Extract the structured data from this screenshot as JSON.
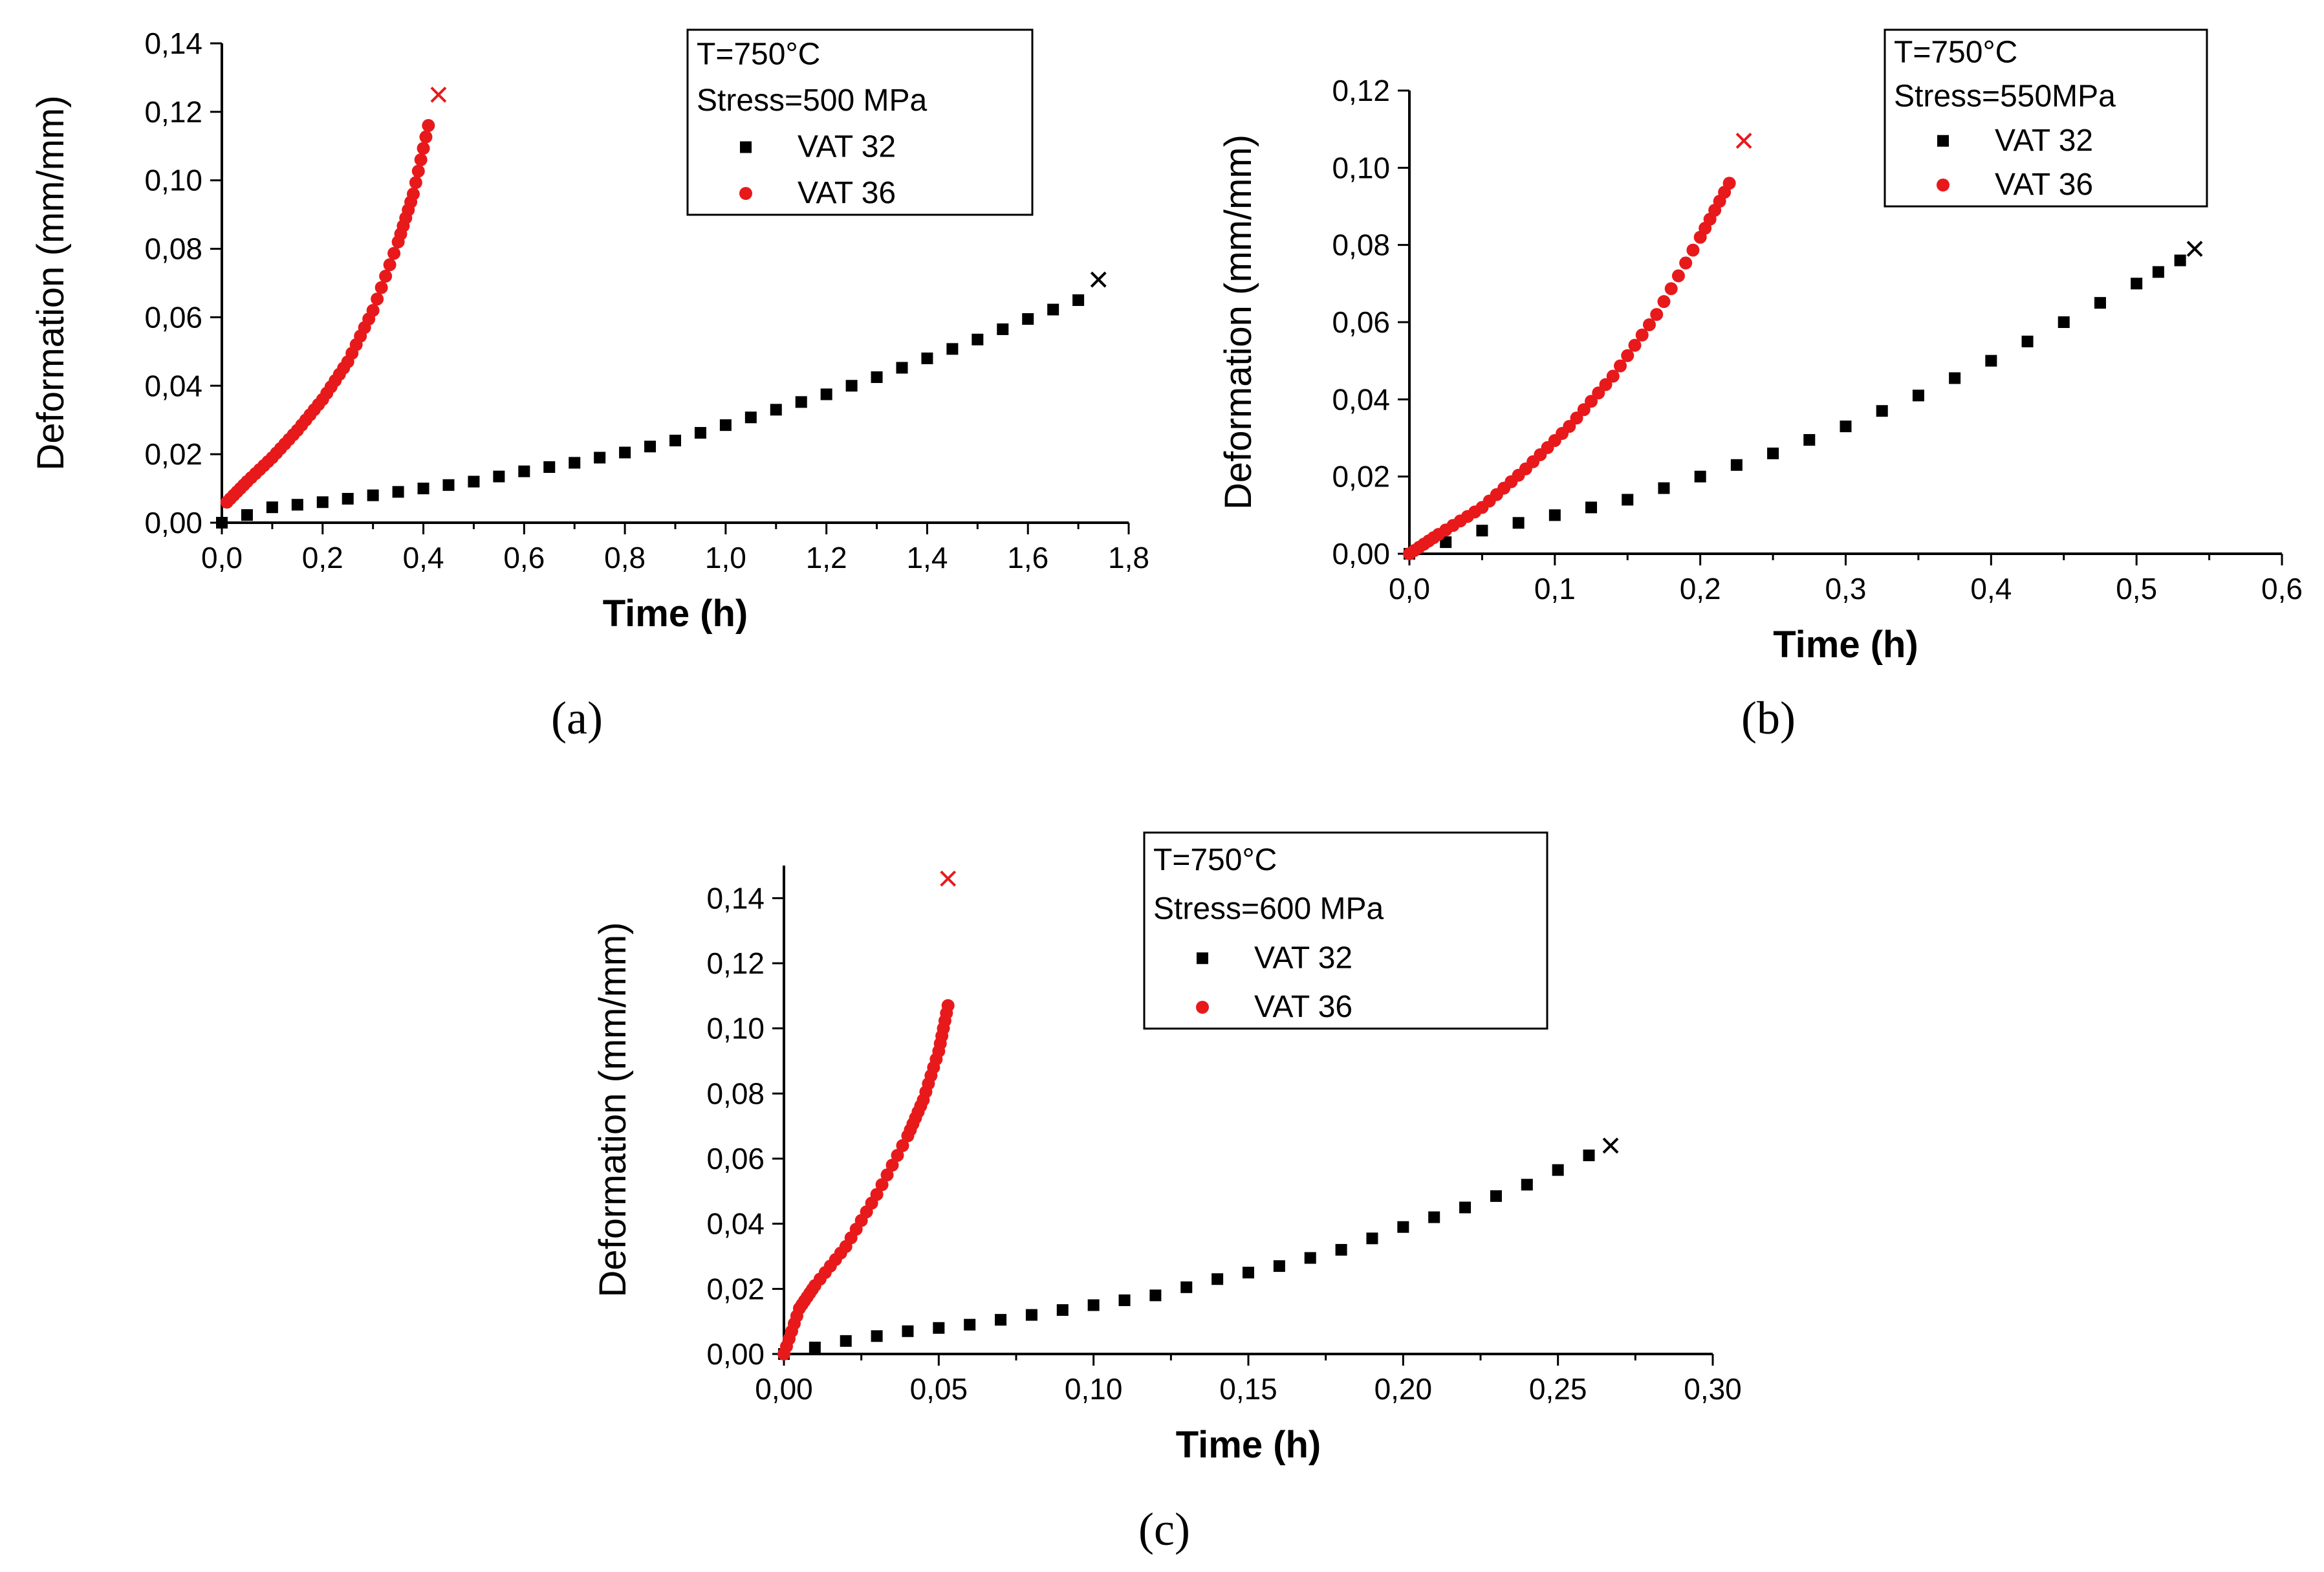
{
  "colors": {
    "vat32": "#000000",
    "vat36": "#e8191b",
    "axis": "#000000"
  },
  "chart_data": [
    {
      "type": "scatter",
      "panel_label": "(a)",
      "xlabel": "Time (h)",
      "ylabel": "Deformation (mm/mm)",
      "xlim": [
        0,
        1.8
      ],
      "ylim": [
        0,
        0.14
      ],
      "x_ticks": [
        "0,0",
        "0,2",
        "0,4",
        "0,6",
        "0,8",
        "1,0",
        "1,2",
        "1,4",
        "1,6",
        "1,8"
      ],
      "y_ticks": [
        "0,00",
        "0,02",
        "0,04",
        "0,06",
        "0,08",
        "0,10",
        "0,12",
        "0,14"
      ],
      "legend": {
        "lines": [
          "T=750°C",
          "Stress=500 MPa"
        ],
        "placement": "top-right"
      },
      "series": [
        {
          "name": "VAT 32",
          "marker": "square",
          "color": "#000000",
          "x": [
            0.0,
            0.1,
            0.2,
            0.3,
            0.4,
            0.5,
            0.6,
            0.7,
            0.8,
            0.9,
            1.0,
            1.1,
            1.2,
            1.3,
            1.4,
            1.5,
            1.6,
            1.7
          ],
          "y": [
            0.0,
            0.0045,
            0.006,
            0.008,
            0.01,
            0.012,
            0.015,
            0.0175,
            0.0205,
            0.024,
            0.0285,
            0.033,
            0.0375,
            0.0425,
            0.048,
            0.0535,
            0.0595,
            0.065
          ],
          "rupture": [
            1.74,
            0.071
          ]
        },
        {
          "name": "VAT 36",
          "marker": "circle",
          "color": "#e8191b",
          "x": [
            0.01,
            0.05,
            0.1,
            0.15,
            0.2,
            0.25,
            0.3,
            0.35,
            0.38,
            0.41
          ],
          "y": [
            0.006,
            0.012,
            0.019,
            0.027,
            0.036,
            0.047,
            0.062,
            0.082,
            0.096,
            0.116
          ],
          "rupture": [
            0.43,
            0.125
          ]
        }
      ]
    },
    {
      "type": "scatter",
      "panel_label": "(b)",
      "xlabel": "Time (h)",
      "ylabel": "Deformation (mm/mm)",
      "xlim": [
        0,
        0.6
      ],
      "ylim": [
        0,
        0.12
      ],
      "x_ticks": [
        "0,0",
        "0,1",
        "0,2",
        "0,3",
        "0,4",
        "0,5",
        "0,6"
      ],
      "y_ticks": [
        "0,00",
        "0,02",
        "0,04",
        "0,06",
        "0,08",
        "0,10",
        "0,12"
      ],
      "legend": {
        "lines": [
          "T=750°C",
          "Stress=550MPa"
        ],
        "placement": "top-right"
      },
      "series": [
        {
          "name": "VAT 32",
          "marker": "square",
          "color": "#000000",
          "x": [
            0.0,
            0.05,
            0.1,
            0.15,
            0.2,
            0.25,
            0.3,
            0.35,
            0.4,
            0.45,
            0.5,
            0.53
          ],
          "y": [
            0.0,
            0.006,
            0.01,
            0.014,
            0.02,
            0.026,
            0.033,
            0.041,
            0.05,
            0.06,
            0.07,
            0.076
          ],
          "rupture": [
            0.54,
            0.079
          ]
        },
        {
          "name": "VAT 36",
          "marker": "circle",
          "color": "#e8191b",
          "x": [
            0.0,
            0.02,
            0.05,
            0.08,
            0.11,
            0.14,
            0.17,
            0.2,
            0.22
          ],
          "y": [
            0.0,
            0.005,
            0.012,
            0.022,
            0.033,
            0.046,
            0.062,
            0.082,
            0.096
          ],
          "rupture": [
            0.23,
            0.107
          ]
        }
      ]
    },
    {
      "type": "scatter",
      "panel_label": "(c)",
      "xlabel": "Time (h)",
      "ylabel": "Deformation (mm/mm)",
      "xlim": [
        0,
        0.3
      ],
      "ylim": [
        0,
        0.15
      ],
      "x_ticks": [
        "0,00",
        "0,05",
        "0,10",
        "0,15",
        "0,20",
        "0,25",
        "0,30"
      ],
      "y_ticks": [
        "0,00",
        "0,02",
        "0,04",
        "0,06",
        "0,08",
        "0,10",
        "0,12",
        "0,14"
      ],
      "legend": {
        "lines": [
          "T=750°C",
          "Stress=600 MPa"
        ],
        "placement": "top-center"
      },
      "series": [
        {
          "name": "VAT 32",
          "marker": "square",
          "color": "#000000",
          "x": [
            0.0,
            0.02,
            0.04,
            0.06,
            0.08,
            0.1,
            0.12,
            0.14,
            0.16,
            0.18,
            0.2,
            0.22,
            0.24,
            0.26
          ],
          "y": [
            0.0,
            0.004,
            0.007,
            0.009,
            0.012,
            0.015,
            0.018,
            0.023,
            0.027,
            0.032,
            0.039,
            0.045,
            0.052,
            0.061
          ],
          "rupture": [
            0.267,
            0.064
          ]
        },
        {
          "name": "VAT 36",
          "marker": "circle",
          "color": "#e8191b",
          "x": [
            0.0,
            0.005,
            0.01,
            0.02,
            0.03,
            0.04,
            0.045,
            0.05,
            0.053
          ],
          "y": [
            0.0,
            0.014,
            0.021,
            0.033,
            0.049,
            0.067,
            0.078,
            0.093,
            0.107
          ],
          "rupture": [
            0.053,
            0.146
          ]
        }
      ]
    }
  ]
}
